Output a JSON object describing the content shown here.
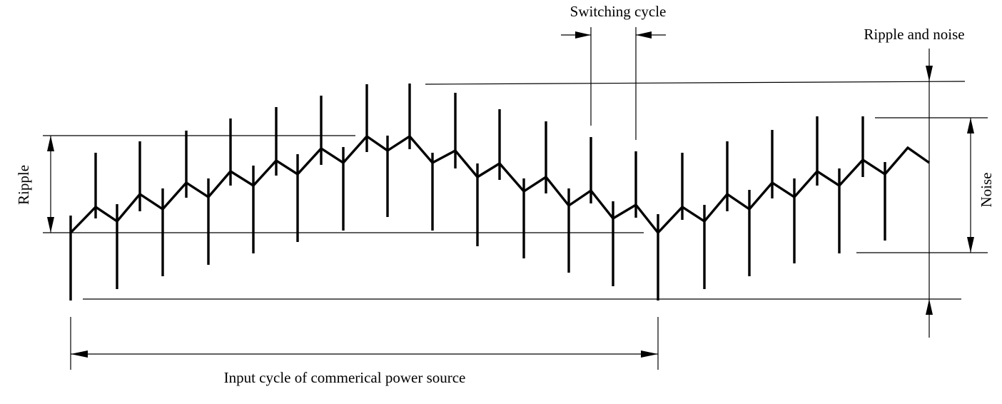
{
  "labels": {
    "switching_cycle": "Switching cycle",
    "ripple_and_noise": "Ripple and noise",
    "ripple": "Ripple",
    "noise": "Noise",
    "input_cycle": "Input cycle of commerical power source"
  },
  "colors": {
    "stroke": "#000000",
    "background": "#ffffff"
  }
}
